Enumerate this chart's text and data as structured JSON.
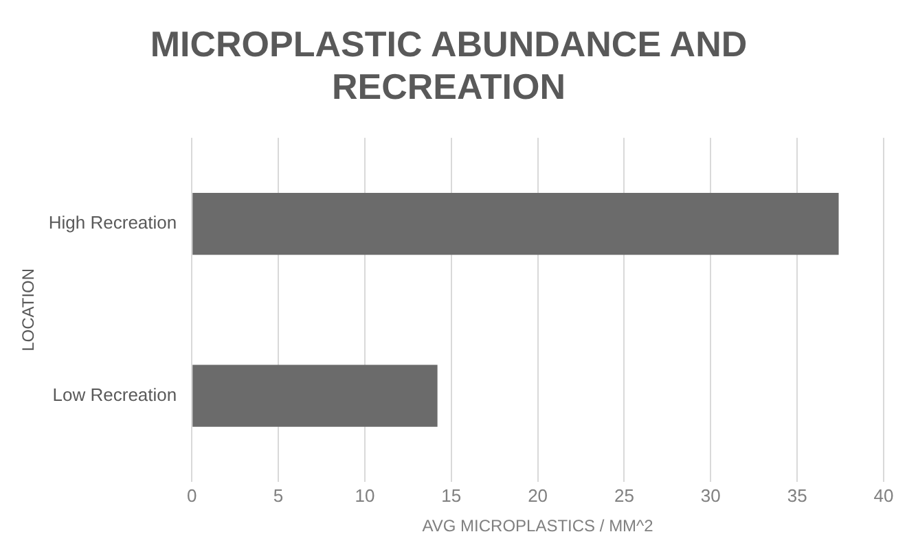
{
  "chart_data": {
    "type": "bar",
    "orientation": "horizontal",
    "title": "MICROPLASTIC ABUNDANCE AND RECREATION",
    "xlabel": "AVG MICROPLASTICS / MM^2",
    "ylabel": "LOCATION",
    "categories": [
      "High Recreation",
      "Low Recreation"
    ],
    "values": [
      37.4,
      14.2
    ],
    "color": "#6b6b6b",
    "xlim": [
      0,
      40
    ],
    "xticks": [
      0,
      5,
      10,
      15,
      20,
      25,
      30,
      35,
      40
    ],
    "grid": "x",
    "legend": false
  }
}
